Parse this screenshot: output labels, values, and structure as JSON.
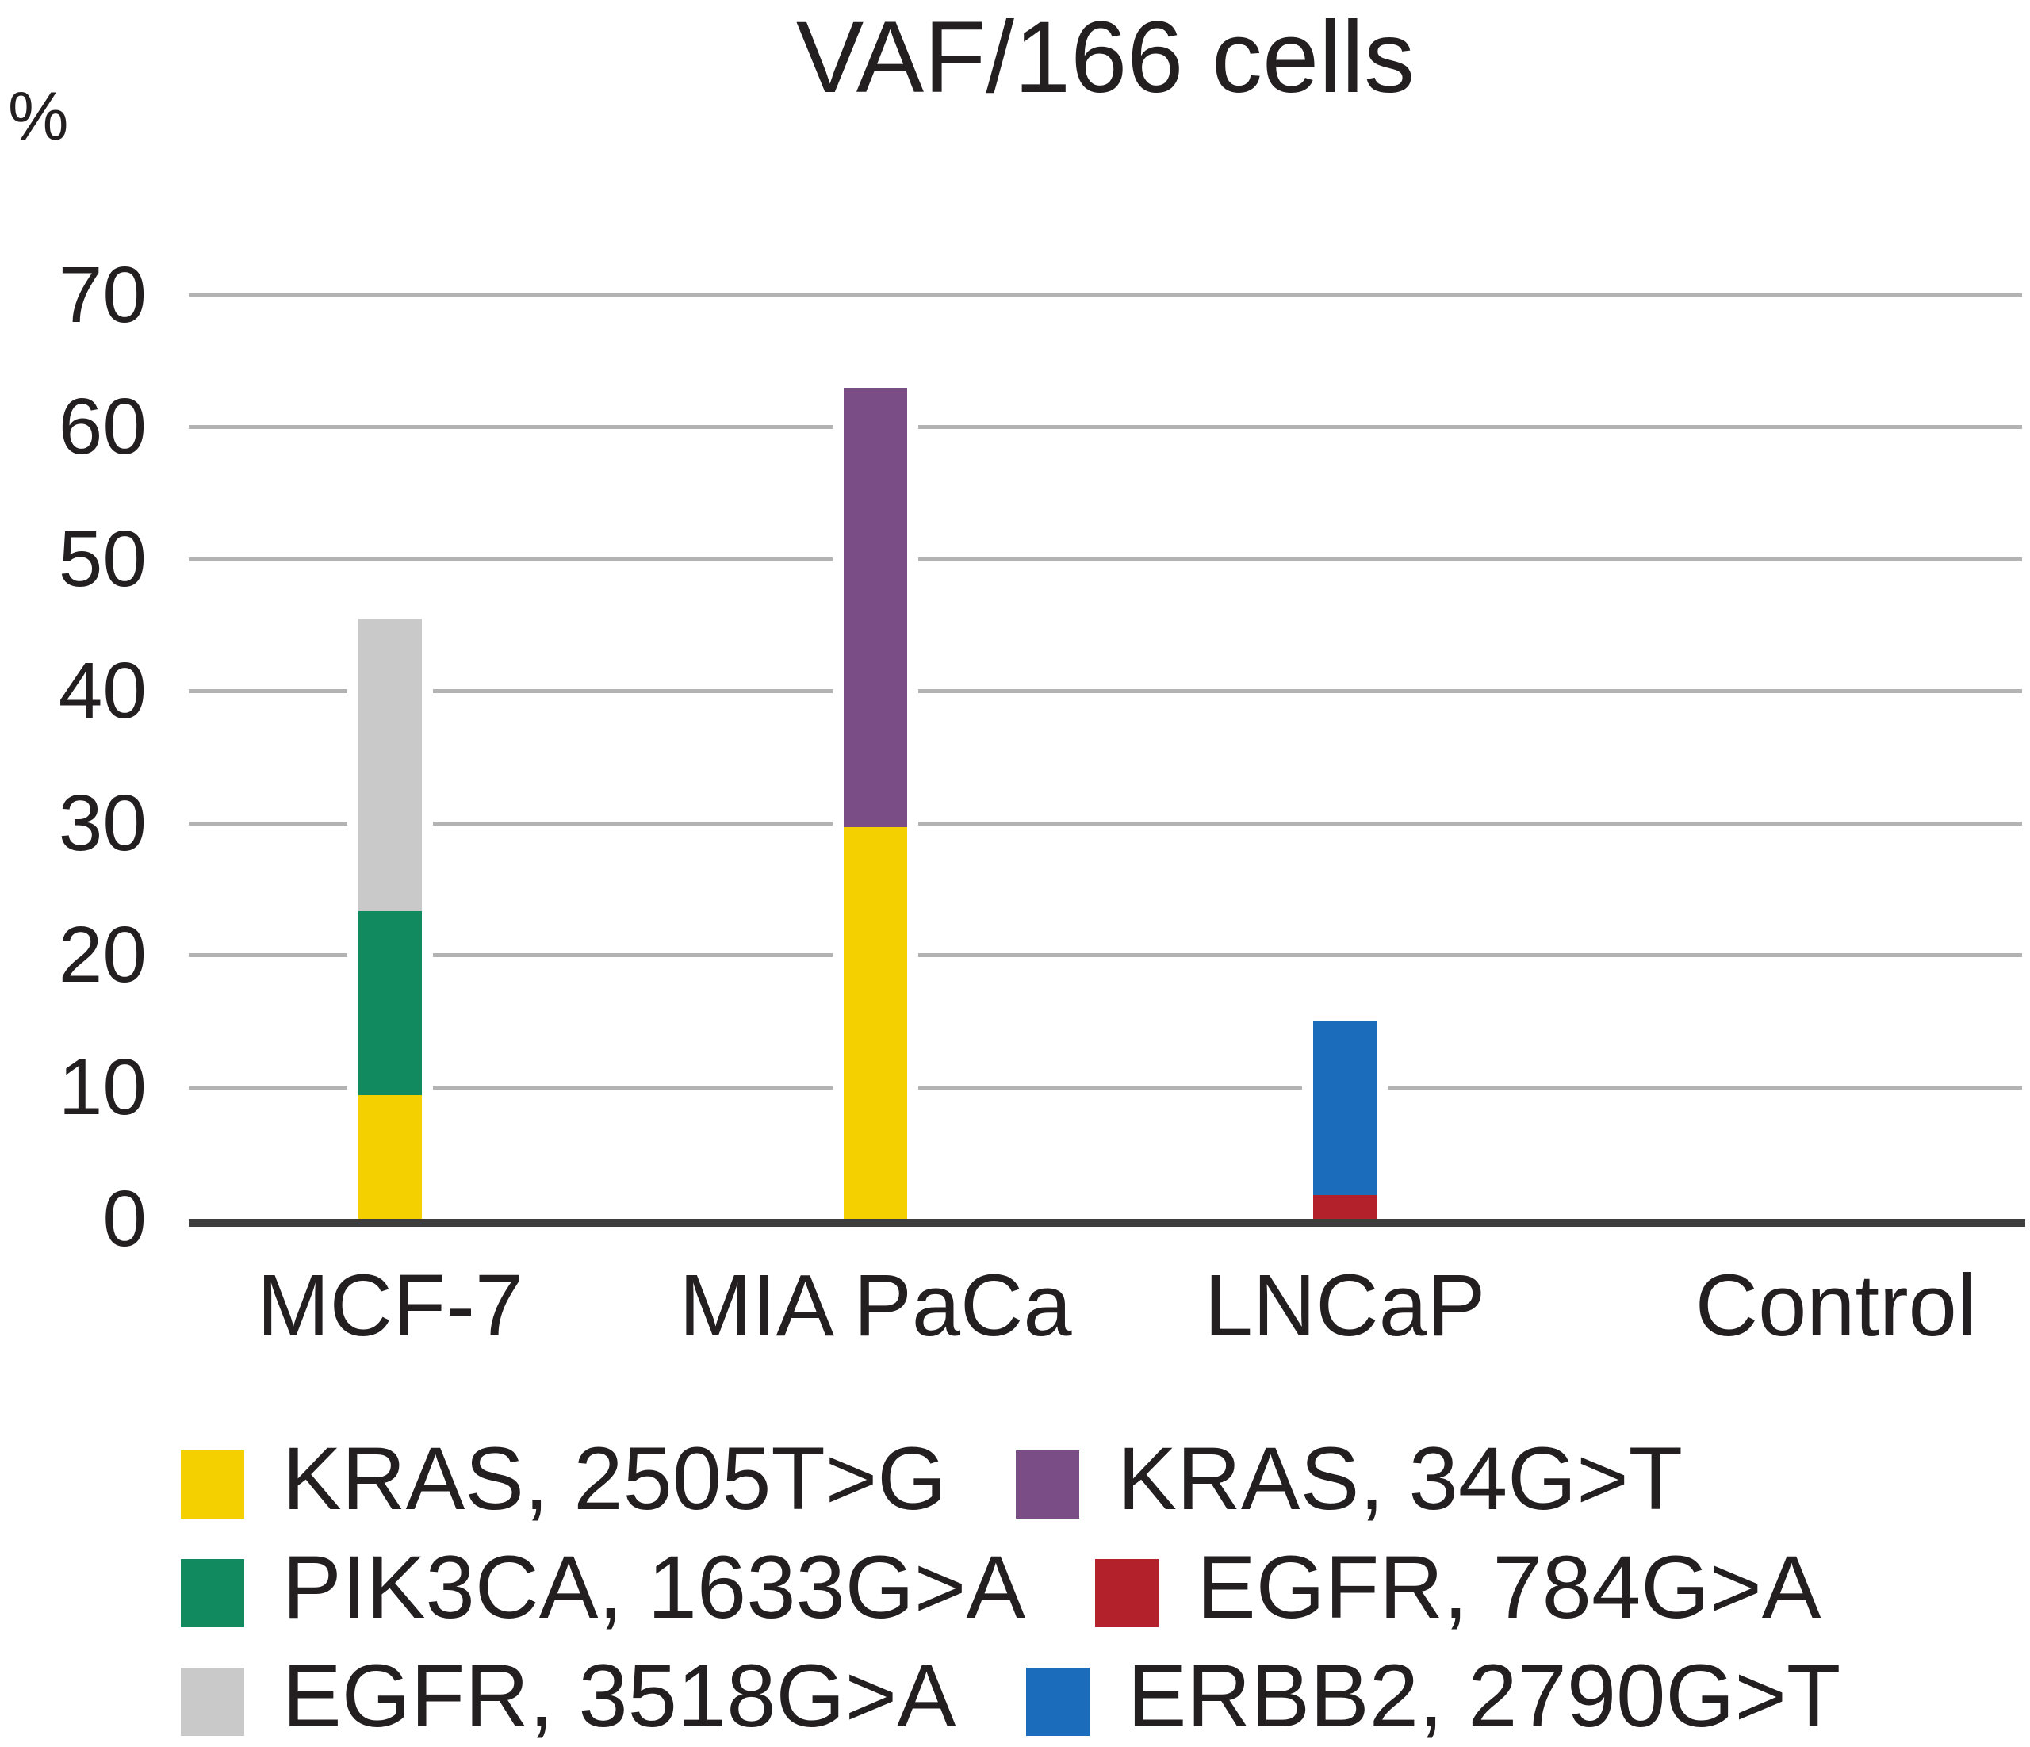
{
  "chart_data": {
    "type": "bar",
    "stacked": true,
    "title": "VAF/166 cells",
    "ylabel": "%",
    "xlabel": "",
    "ylim": [
      0,
      70
    ],
    "yticks": [
      0,
      10,
      20,
      30,
      40,
      50,
      60,
      70
    ],
    "grid": "horizontal",
    "legend_position": "bottom",
    "categories": [
      "MCF-7",
      "MIA PaCa",
      "LNCaP",
      "Control"
    ],
    "series": [
      {
        "name": "KRAS, 2505T>G",
        "color": "#f5d000",
        "values": [
          9.4,
          29.7,
          0,
          0
        ]
      },
      {
        "name": "KRAS, 34G>T",
        "color": "#7b4d87",
        "values": [
          0,
          33.3,
          0,
          0
        ]
      },
      {
        "name": "PIK3CA, 1633G>A",
        "color": "#118a5f",
        "values": [
          13.9,
          0,
          0,
          0
        ]
      },
      {
        "name": "EGFR, 784G>A",
        "color": "#b3222a",
        "values": [
          0,
          0,
          1.8,
          0
        ]
      },
      {
        "name": "EGFR, 3518G>A",
        "color": "#c9c9c9",
        "values": [
          22.2,
          0,
          0,
          0
        ]
      },
      {
        "name": "ERBB2, 2790G>T",
        "color": "#1c6cbc",
        "values": [
          0,
          0,
          13.2,
          0
        ]
      }
    ],
    "stack_order": [
      [
        "KRAS, 2505T>G",
        "PIK3CA, 1633G>A",
        "EGFR, 3518G>A"
      ],
      [
        "KRAS, 2505T>G",
        "KRAS, 34G>T"
      ],
      [
        "EGFR, 784G>A",
        "ERBB2, 2790G>T"
      ],
      []
    ],
    "totals": [
      45.5,
      63.0,
      15.0,
      0
    ],
    "legend_rows": [
      [
        "KRAS, 2505T>G",
        "KRAS, 34G>T"
      ],
      [
        "PIK3CA, 1633G>A",
        "EGFR, 784G>A"
      ],
      [
        "EGFR, 3518G>A",
        "ERBB2, 2790G>T"
      ]
    ],
    "colors": {
      "grid": "#b3b3b3",
      "axis": "#3e3e3e",
      "text": "#231f20"
    }
  }
}
